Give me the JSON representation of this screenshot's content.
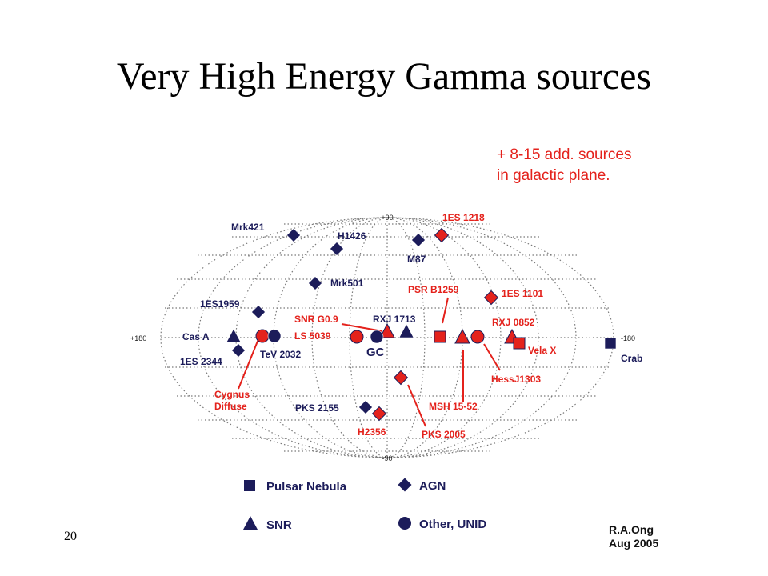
{
  "title": "Very High Energy Gamma sources",
  "footer_fragment": "20",
  "note": {
    "line1": "+ 8-15 add. sources",
    "line2": "in galactic plane."
  },
  "axes": {
    "top": "+90",
    "bottom": "-90",
    "left": "+180",
    "right": "-180"
  },
  "credit": {
    "author": "R.A.Ong",
    "date": "Aug 2005"
  },
  "colors": {
    "navy": "#1c1c5a",
    "red": "#e4221c",
    "grid": "#7a7a7a",
    "text_dark": "#1a1a1a"
  },
  "legend": [
    {
      "shape": "square",
      "label": "Pulsar Nebula"
    },
    {
      "shape": "diamond",
      "label": "AGN"
    },
    {
      "shape": "triangle",
      "label": "SNR"
    },
    {
      "shape": "circle",
      "label": "Other, UNID"
    }
  ],
  "sources": [
    {
      "label": "Mrk421",
      "type": "AGN",
      "color": "navy"
    },
    {
      "label": "H1426",
      "type": "AGN",
      "color": "navy"
    },
    {
      "label": "M87",
      "type": "AGN",
      "color": "navy"
    },
    {
      "label": "1ES 1218",
      "type": "AGN",
      "color": "red"
    },
    {
      "label": "Mrk501",
      "type": "AGN",
      "color": "navy"
    },
    {
      "label": "1ES1959",
      "type": "AGN",
      "color": "navy"
    },
    {
      "label": "1ES 1101",
      "type": "AGN",
      "color": "red"
    },
    {
      "label": "Cas A",
      "type": "SNR",
      "color": "navy"
    },
    {
      "label": "1ES 2344",
      "type": "AGN",
      "color": "navy"
    },
    {
      "label": "TeV 2032",
      "type": "Other, UNID",
      "color": "navy"
    },
    {
      "label": "SNR G0.9",
      "type": "SNR",
      "color": "red"
    },
    {
      "label": "LS 5039",
      "type": "Other, UNID",
      "color": "red"
    },
    {
      "label": "GC",
      "type": "Other, UNID",
      "color": "navy"
    },
    {
      "label": "RXJ 1713",
      "type": "SNR",
      "color": "navy"
    },
    {
      "label": "PSR B1259",
      "type": "Pulsar Nebula",
      "color": "red"
    },
    {
      "label": "RXJ 0852",
      "type": "SNR",
      "color": "red"
    },
    {
      "label": "Vela X",
      "type": "Pulsar Nebula",
      "color": "red"
    },
    {
      "label": "Crab",
      "type": "Pulsar Nebula",
      "color": "navy"
    },
    {
      "label": "HessJ1303",
      "type": "Other, UNID",
      "color": "red"
    },
    {
      "label": "MSH 15-52",
      "type": "SNR",
      "color": "red"
    },
    {
      "label": "PKS 2005",
      "type": "AGN",
      "color": "red"
    },
    {
      "label": "PKS 2155",
      "type": "AGN",
      "color": "navy"
    },
    {
      "label": "H2356",
      "type": "AGN",
      "color": "red"
    },
    {
      "label": "Cygnus Diffuse",
      "type": "Other, UNID",
      "color": "red"
    }
  ]
}
